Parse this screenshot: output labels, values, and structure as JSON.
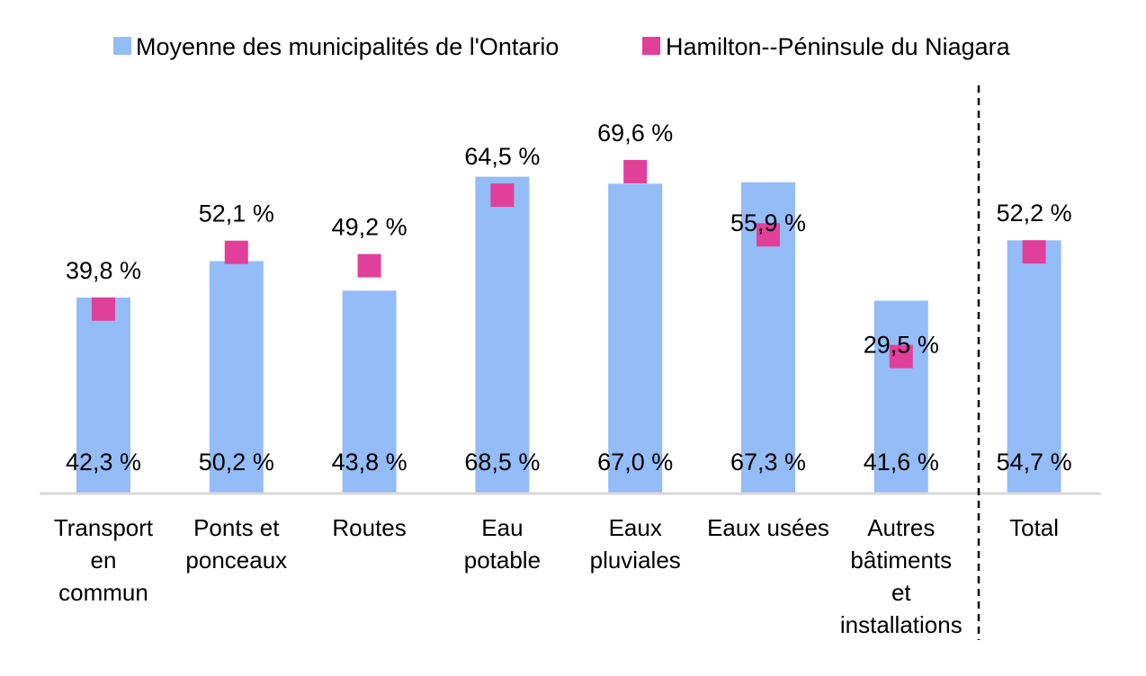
{
  "chart_data": {
    "type": "bar",
    "title": "",
    "xlabel": "",
    "ylabel": "",
    "ylim": [
      0,
      80
    ],
    "grid": false,
    "legend_position": "top",
    "categories": [
      [
        "Transport",
        "en",
        "commun"
      ],
      [
        "Ponts et",
        "ponceaux"
      ],
      [
        "Routes"
      ],
      [
        "Eau",
        "potable"
      ],
      [
        "Eaux",
        "pluviales"
      ],
      [
        "Eaux usées"
      ],
      [
        "Autres",
        "bâtiments",
        "et",
        "installations"
      ],
      [
        "Total"
      ]
    ],
    "series": [
      {
        "name": "Moyenne des municipalités de l'Ontario",
        "kind": "bar",
        "color": "#94bcf7",
        "values": [
          42.3,
          50.2,
          43.8,
          68.5,
          67.0,
          67.3,
          41.6,
          54.7
        ],
        "labels": [
          "42,3 %",
          "50,2 %",
          "43,8 %",
          "68,5 %",
          "67,0 %",
          "67,3 %",
          "41,6 %",
          "54,7 %"
        ]
      },
      {
        "name": "Hamilton--Péninsule du Niagara",
        "kind": "marker",
        "color": "#e0409a",
        "values": [
          39.8,
          52.1,
          49.2,
          64.5,
          69.6,
          55.9,
          29.5,
          52.2
        ],
        "labels": [
          "39,8 %",
          "52,1 %",
          "49,2 %",
          "64,5 %",
          "69,6 %",
          "55,9 %",
          "29,5 %",
          "52,2 %"
        ]
      }
    ],
    "separator_before_category": 7
  }
}
